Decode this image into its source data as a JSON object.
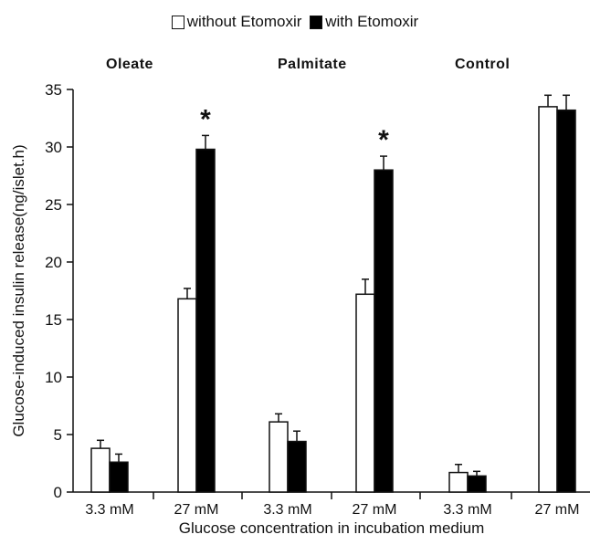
{
  "chart_data": {
    "type": "bar",
    "ylabel": "Glucose-induced insulin release(ng/islet.h)",
    "xlabel": "Glucose concentration in incubation medium",
    "ylim": [
      0,
      35
    ],
    "yticks": [
      0,
      5,
      10,
      15,
      20,
      25,
      30,
      35
    ],
    "grid": false,
    "legend_position": "top-center",
    "groups": [
      "Oleate",
      "Palmitate",
      "Control"
    ],
    "categories": [
      "3.3 mM",
      "27 mM",
      "3.3 mM",
      "27 mM",
      "3.3 mM",
      "27 mM"
    ],
    "series": [
      {
        "name": "without Etomoxir",
        "color": "#ffffff",
        "values": [
          3.8,
          16.8,
          6.1,
          17.2,
          1.7,
          33.5
        ],
        "errors": [
          0.7,
          0.9,
          0.7,
          1.3,
          0.7,
          1.0
        ]
      },
      {
        "name": "with Etomoxir",
        "color": "#000000",
        "values": [
          2.6,
          29.8,
          4.4,
          28.0,
          1.4,
          33.2
        ],
        "errors": [
          0.7,
          1.2,
          0.9,
          1.2,
          0.4,
          1.3
        ]
      }
    ],
    "significance": [
      "",
      "*",
      "",
      "*",
      "",
      ""
    ]
  }
}
